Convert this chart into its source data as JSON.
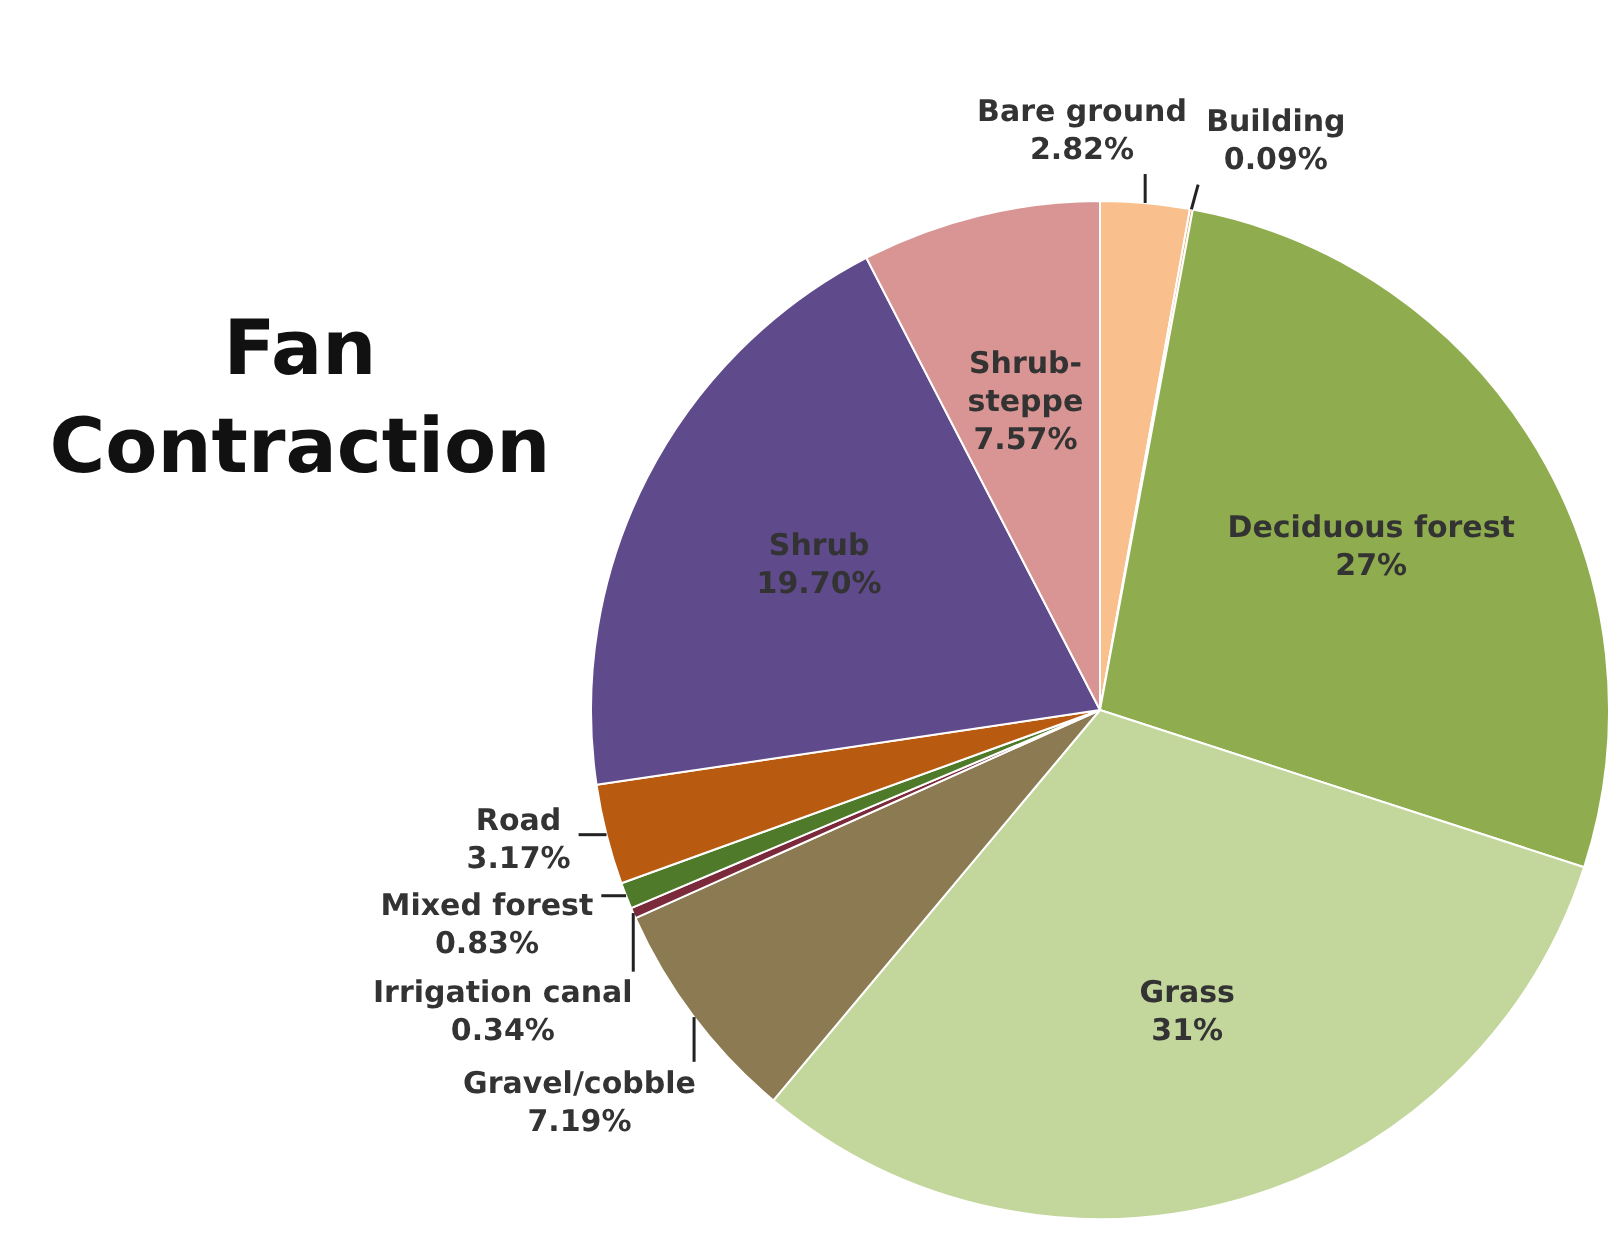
{
  "chart_data": {
    "type": "pie",
    "title": "Fan Contraction",
    "categories": [
      "Bare ground",
      "Building",
      "Deciduous forest",
      "Grass",
      "Gravel/cobble",
      "Irrigation canal",
      "Mixed forest",
      "Road",
      "Shrub",
      "Shrub-steppe"
    ],
    "values": [
      2.82,
      0.09,
      27,
      31,
      7.19,
      0.34,
      0.83,
      3.17,
      19.7,
      7.57
    ],
    "value_labels": [
      "2.82%",
      "0.09%",
      "27%",
      "31%",
      "7.19%",
      "0.34%",
      "0.83%",
      "3.17%",
      "19.70%",
      "7.57%"
    ],
    "colors": [
      "#f9c08e",
      "#e39a55",
      "#8fad4f",
      "#c3d69b",
      "#8b7a52",
      "#7a2a3a",
      "#4e7a2a",
      "#b85a10",
      "#5f4a8b",
      "#d99594"
    ],
    "legend": false
  }
}
